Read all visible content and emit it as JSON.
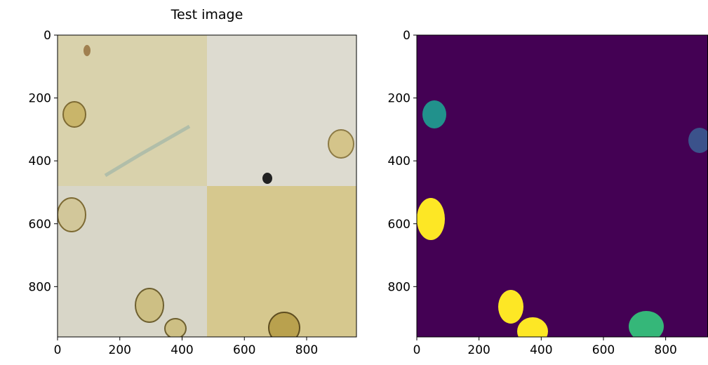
{
  "chart_data": [
    {
      "type": "image",
      "title": "Test image",
      "xlim": [
        0,
        960
      ],
      "ylim": [
        960,
        0
      ],
      "xticks": [
        0,
        200,
        400,
        600,
        800
      ],
      "yticks": [
        0,
        200,
        400,
        600,
        800
      ]
    },
    {
      "type": "image",
      "xlim": [
        0,
        935
      ],
      "ylim": [
        960,
        0
      ],
      "xticks": [
        0,
        200,
        400,
        600,
        800
      ],
      "yticks": [
        0,
        200,
        400,
        600,
        800
      ]
    }
  ]
}
